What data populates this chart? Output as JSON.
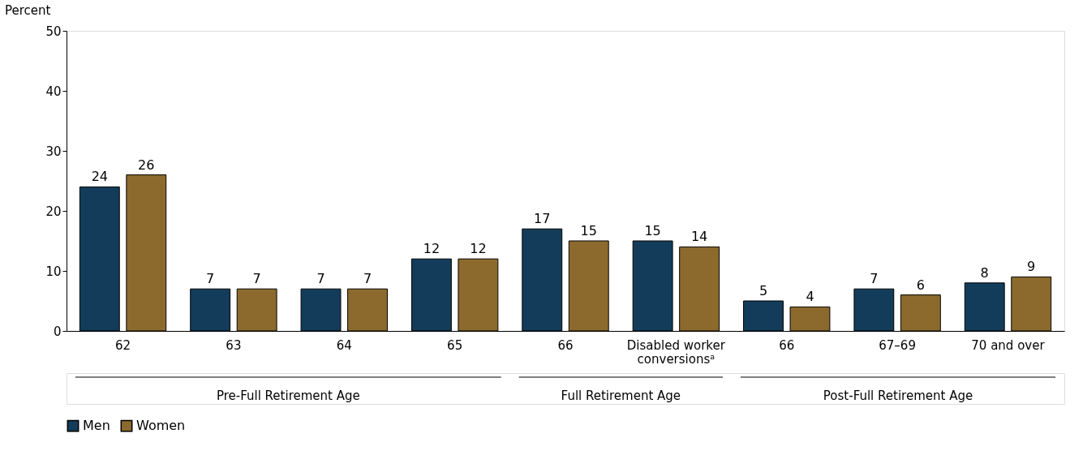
{
  "chart_data": {
    "type": "bar",
    "ylabel": "Percent",
    "categories": [
      "62",
      "63",
      "64",
      "65",
      "66",
      "Disabled worker conversionsᵃ",
      "66",
      "67–69",
      "70 and over"
    ],
    "series": [
      {
        "name": "Men",
        "color": "#133c5a",
        "values": [
          24,
          7,
          7,
          12,
          17,
          15,
          5,
          7,
          8
        ]
      },
      {
        "name": "Women",
        "color": "#8c6a2e",
        "values": [
          26,
          7,
          7,
          12,
          15,
          14,
          4,
          6,
          9
        ]
      }
    ],
    "ylim": [
      0,
      50
    ],
    "yticks": [
      0,
      10,
      20,
      30,
      40,
      50
    ],
    "grid": false,
    "legend": "bottom",
    "data_labels": true,
    "annotations": [
      "Pre-Full Retirement Age",
      "Full Retirement Age",
      "Post-Full Retirement Age"
    ]
  }
}
